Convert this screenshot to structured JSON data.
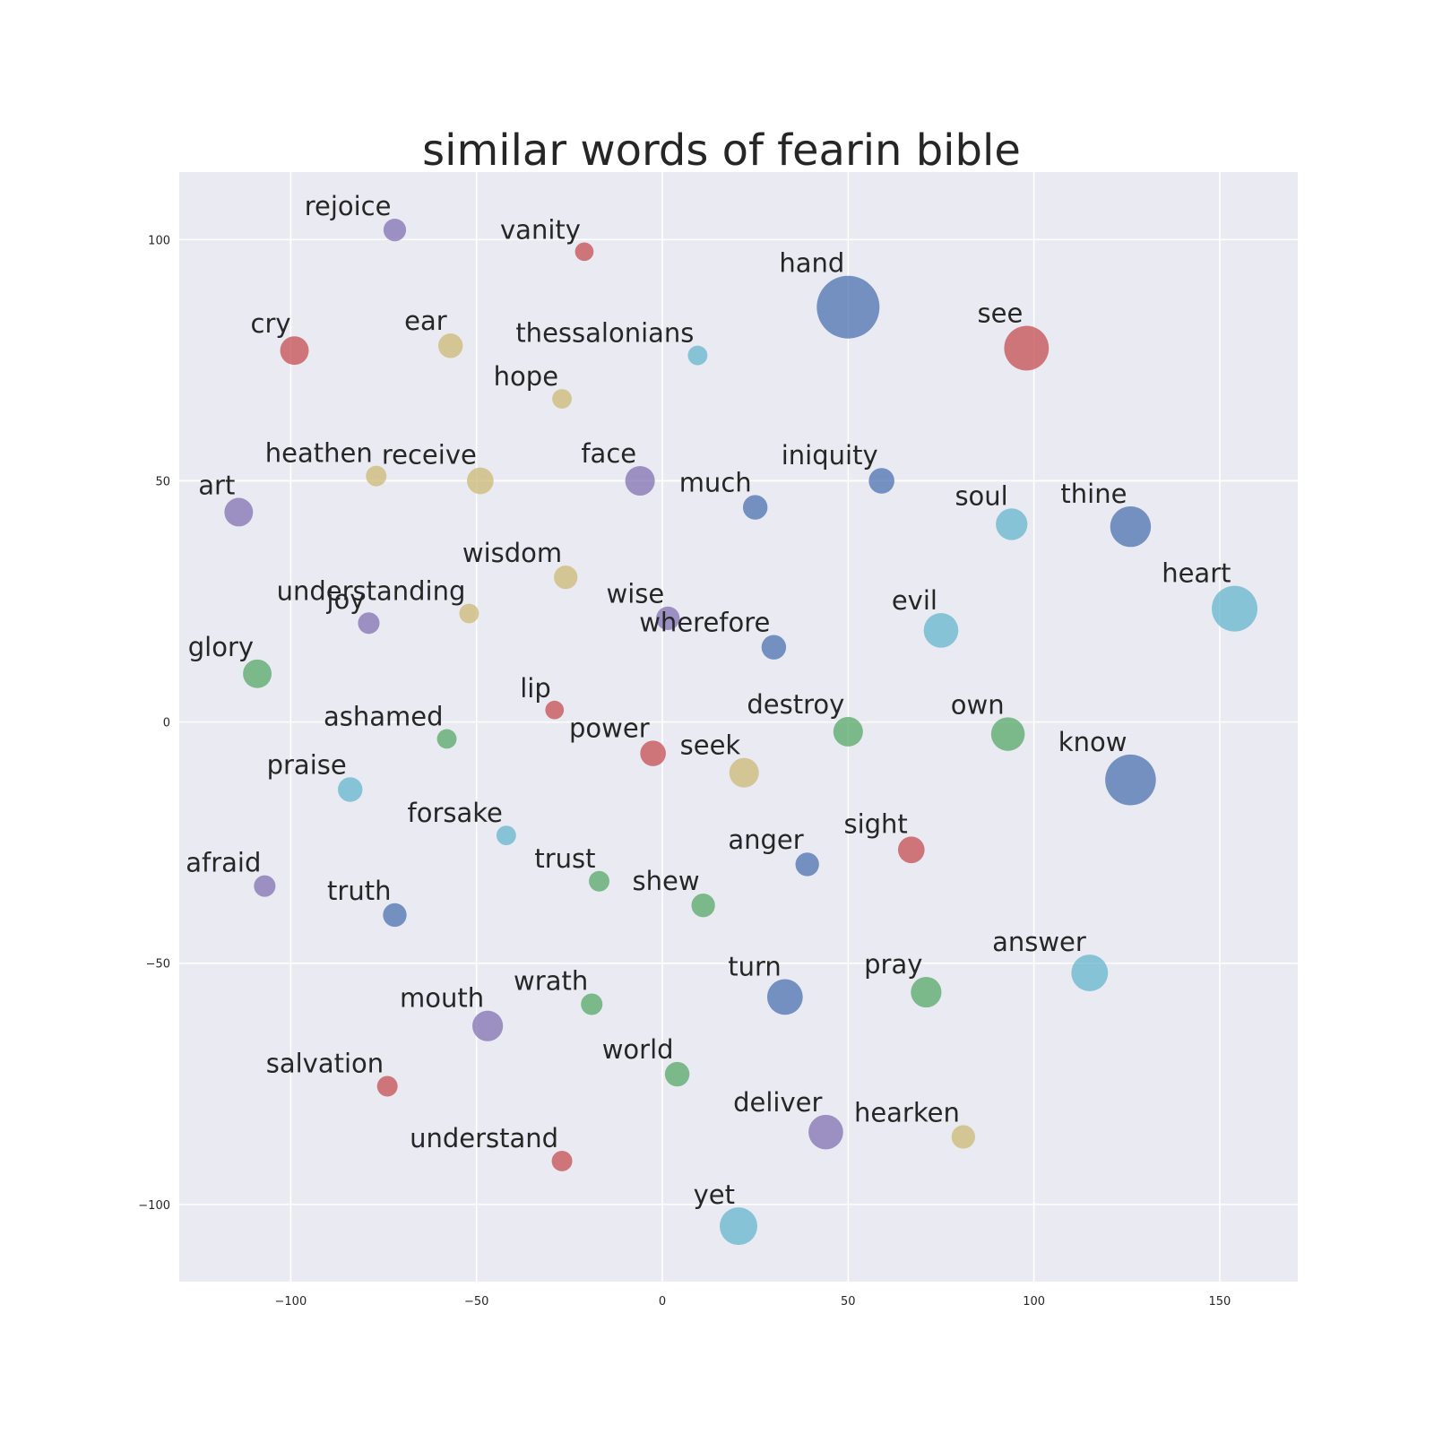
{
  "chart_data": {
    "type": "scatter",
    "title": "similar words of fearin bible",
    "xlabel": "",
    "ylabel": "",
    "xlim": [
      -130,
      171
    ],
    "ylim": [
      -116,
      114
    ],
    "xticks": [
      -100,
      -50,
      0,
      50,
      100,
      150
    ],
    "yticks": [
      -100,
      -50,
      0,
      50,
      100
    ],
    "xtick_labels": [
      "−100",
      "−50",
      "0",
      "50",
      "100",
      "150"
    ],
    "ytick_labels": [
      "−100",
      "−50",
      "0",
      "50",
      "100"
    ],
    "grid": true,
    "background": "#eaeaf2",
    "palette": {
      "blue": "#4c72b0",
      "green": "#55a868",
      "red": "#c44e52",
      "purple": "#8172b2",
      "yellow": "#ccb974",
      "cyan": "#64b5cd"
    },
    "points": [
      {
        "word": "rejoice",
        "x": -72,
        "y": 102,
        "size": 1,
        "color": "purple"
      },
      {
        "word": "vanity",
        "x": -21,
        "y": 97.5,
        "size": 0.6,
        "color": "red"
      },
      {
        "word": "hand",
        "x": 50,
        "y": 86,
        "size": 5,
        "color": "blue"
      },
      {
        "word": "cry",
        "x": -99,
        "y": 77,
        "size": 1.6,
        "color": "red"
      },
      {
        "word": "ear",
        "x": -57,
        "y": 78,
        "size": 1.2,
        "color": "yellow"
      },
      {
        "word": "thessalonians",
        "x": 9.5,
        "y": 76,
        "size": 0.7,
        "color": "cyan"
      },
      {
        "word": "see",
        "x": 98,
        "y": 77.5,
        "size": 3.2,
        "color": "red"
      },
      {
        "word": "hope",
        "x": -27,
        "y": 67,
        "size": 0.7,
        "color": "yellow"
      },
      {
        "word": "heathen",
        "x": -77,
        "y": 51,
        "size": 0.8,
        "color": "yellow"
      },
      {
        "word": "receive",
        "x": -49,
        "y": 50,
        "size": 1.4,
        "color": "yellow"
      },
      {
        "word": "face",
        "x": -6,
        "y": 50,
        "size": 1.7,
        "color": "purple"
      },
      {
        "word": "iniquity",
        "x": 59,
        "y": 50,
        "size": 1.3,
        "color": "blue"
      },
      {
        "word": "art",
        "x": -114,
        "y": 43.5,
        "size": 1.6,
        "color": "purple"
      },
      {
        "word": "much",
        "x": 25,
        "y": 44.5,
        "size": 1.2,
        "color": "blue"
      },
      {
        "word": "soul",
        "x": 94,
        "y": 41,
        "size": 1.9,
        "color": "cyan"
      },
      {
        "word": "thine",
        "x": 126,
        "y": 40.5,
        "size": 2.8,
        "color": "blue"
      },
      {
        "word": "wisdom",
        "x": -26,
        "y": 30,
        "size": 1.1,
        "color": "yellow"
      },
      {
        "word": "heart",
        "x": 154,
        "y": 23.5,
        "size": 3.3,
        "color": "cyan"
      },
      {
        "word": "understanding",
        "x": -52,
        "y": 22.5,
        "size": 0.7,
        "color": "yellow"
      },
      {
        "word": "joy",
        "x": -79,
        "y": 20.5,
        "size": 0.9,
        "color": "purple"
      },
      {
        "word": "wise",
        "x": 1.5,
        "y": 21.5,
        "size": 1.1,
        "color": "purple"
      },
      {
        "word": "evil",
        "x": 75,
        "y": 19,
        "size": 2.2,
        "color": "cyan"
      },
      {
        "word": "wherefore",
        "x": 30,
        "y": 15.5,
        "size": 1.2,
        "color": "blue"
      },
      {
        "word": "glory",
        "x": -109,
        "y": 10,
        "size": 1.6,
        "color": "green"
      },
      {
        "word": "lip",
        "x": -29,
        "y": 2.5,
        "size": 0.6,
        "color": "red"
      },
      {
        "word": "ashamed",
        "x": -58,
        "y": -3.5,
        "size": 0.7,
        "color": "green"
      },
      {
        "word": "destroy",
        "x": 50,
        "y": -2,
        "size": 1.7,
        "color": "green"
      },
      {
        "word": "own",
        "x": 93,
        "y": -2.5,
        "size": 2.1,
        "color": "green"
      },
      {
        "word": "power",
        "x": -2.5,
        "y": -6.5,
        "size": 1.3,
        "color": "red"
      },
      {
        "word": "seek",
        "x": 22,
        "y": -10.5,
        "size": 1.7,
        "color": "yellow"
      },
      {
        "word": "know",
        "x": 126,
        "y": -12,
        "size": 3.8,
        "color": "blue"
      },
      {
        "word": "praise",
        "x": -84,
        "y": -14,
        "size": 1.2,
        "color": "cyan"
      },
      {
        "word": "forsake",
        "x": -42,
        "y": -23.5,
        "size": 0.7,
        "color": "cyan"
      },
      {
        "word": "sight",
        "x": 67,
        "y": -26.5,
        "size": 1.4,
        "color": "red"
      },
      {
        "word": "anger",
        "x": 39,
        "y": -29.5,
        "size": 1.1,
        "color": "blue"
      },
      {
        "word": "afraid",
        "x": -107,
        "y": -34,
        "size": 0.9,
        "color": "purple"
      },
      {
        "word": "trust",
        "x": -17,
        "y": -33,
        "size": 0.8,
        "color": "green"
      },
      {
        "word": "shew",
        "x": 11,
        "y": -38,
        "size": 1.1,
        "color": "green"
      },
      {
        "word": "truth",
        "x": -72,
        "y": -40,
        "size": 1.1,
        "color": "blue"
      },
      {
        "word": "answer",
        "x": 115,
        "y": -52,
        "size": 2.4,
        "color": "cyan"
      },
      {
        "word": "turn",
        "x": 33,
        "y": -57,
        "size": 2.3,
        "color": "blue"
      },
      {
        "word": "pray",
        "x": 71,
        "y": -56,
        "size": 1.8,
        "color": "green"
      },
      {
        "word": "wrath",
        "x": -19,
        "y": -58.5,
        "size": 0.9,
        "color": "green"
      },
      {
        "word": "mouth",
        "x": -47,
        "y": -63,
        "size": 1.8,
        "color": "purple"
      },
      {
        "word": "world",
        "x": 4,
        "y": -73,
        "size": 1.2,
        "color": "green"
      },
      {
        "word": "salvation",
        "x": -74,
        "y": -75.5,
        "size": 0.8,
        "color": "red"
      },
      {
        "word": "deliver",
        "x": 44,
        "y": -85,
        "size": 2.2,
        "color": "purple"
      },
      {
        "word": "hearken",
        "x": 81,
        "y": -86,
        "size": 1.1,
        "color": "yellow"
      },
      {
        "word": "understand",
        "x": -27,
        "y": -91,
        "size": 0.8,
        "color": "red"
      },
      {
        "word": "yet",
        "x": 20.5,
        "y": -104.5,
        "size": 2.5,
        "color": "cyan"
      }
    ]
  }
}
